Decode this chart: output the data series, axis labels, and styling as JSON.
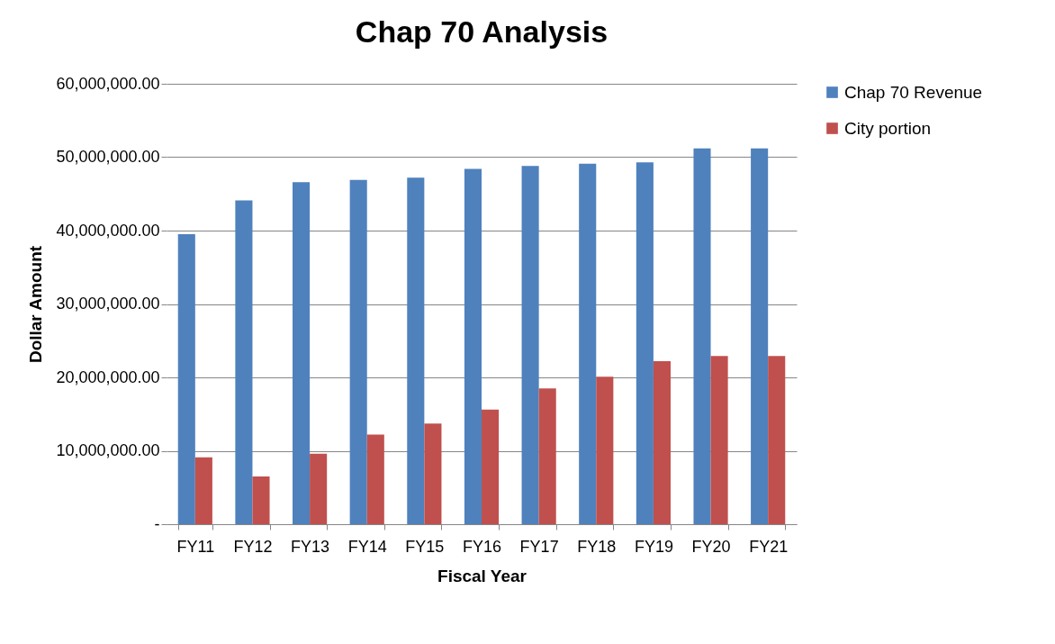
{
  "chart_data": {
    "type": "bar",
    "title": "Chap 70 Analysis",
    "xlabel": "Fiscal Year",
    "ylabel": "Dollar Amount",
    "categories": [
      "FY11",
      "FY12",
      "FY13",
      "FY14",
      "FY15",
      "FY16",
      "FY17",
      "FY18",
      "FY19",
      "FY20",
      "FY21"
    ],
    "series": [
      {
        "name": "Chap 70 Revenue",
        "color": "#4f81bd",
        "values": [
          39500000,
          44100000,
          46600000,
          46900000,
          47200000,
          48400000,
          48800000,
          49100000,
          49300000,
          51200000,
          51200000
        ]
      },
      {
        "name": "City portion",
        "color": "#c0504d",
        "values": [
          9100000,
          6500000,
          9600000,
          12200000,
          13700000,
          15600000,
          18500000,
          20100000,
          22200000,
          22900000,
          22900000
        ]
      }
    ],
    "ylim": [
      0,
      60000000
    ],
    "yticks": [
      {
        "value": 0,
        "label": "-"
      },
      {
        "value": 10000000,
        "label": "10,000,000.00"
      },
      {
        "value": 20000000,
        "label": "20,000,000.00"
      },
      {
        "value": 30000000,
        "label": "30,000,000.00"
      },
      {
        "value": 40000000,
        "label": "40,000,000.00"
      },
      {
        "value": 50000000,
        "label": "50,000,000.00"
      },
      {
        "value": 60000000,
        "label": "60,000,000.00"
      }
    ],
    "grid": "y",
    "legend": "right"
  }
}
